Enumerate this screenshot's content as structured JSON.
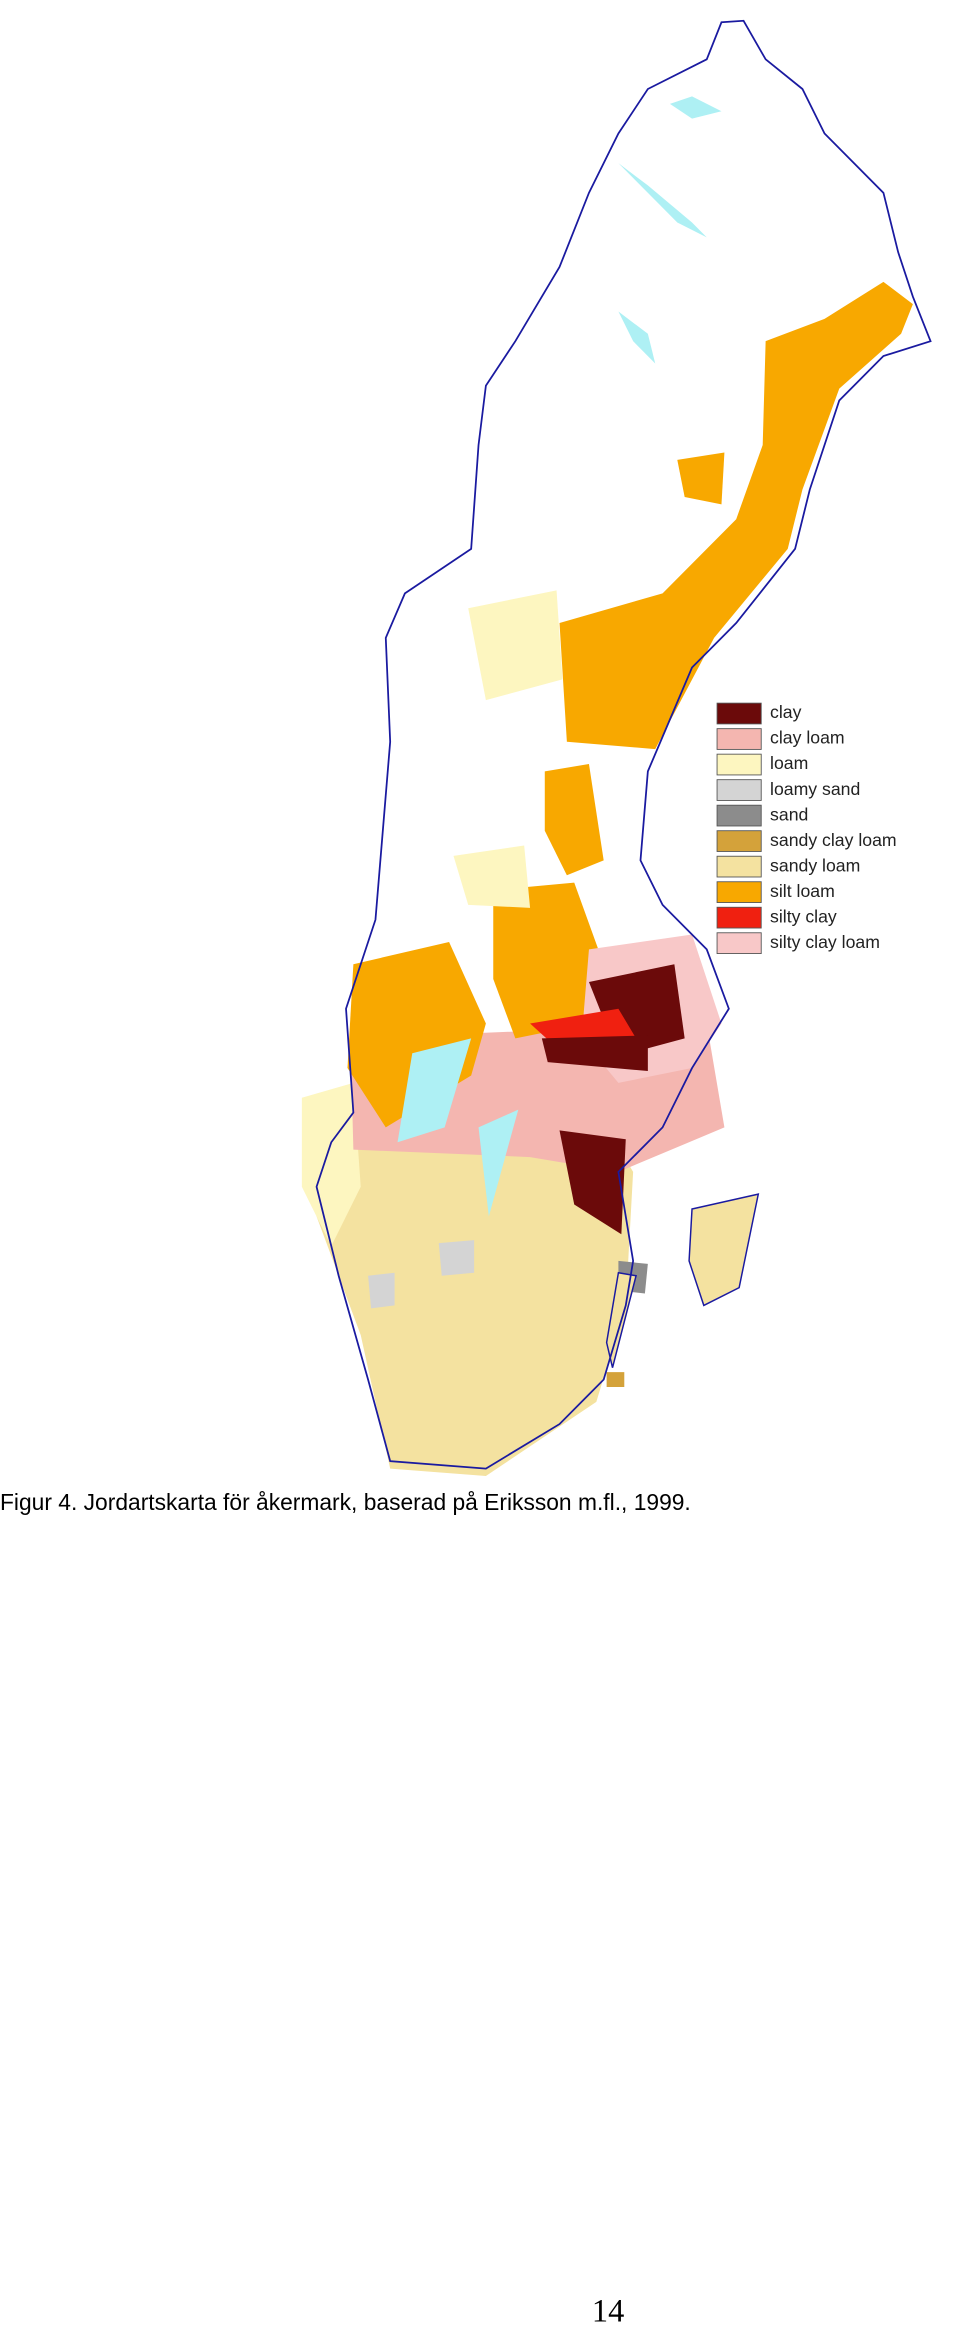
{
  "figure": {
    "legend": [
      {
        "label": "clay",
        "color": "#6b0a0a"
      },
      {
        "label": "clay loam",
        "color": "#f4b6b0"
      },
      {
        "label": "loam",
        "color": "#fdf6c0"
      },
      {
        "label": "loamy sand",
        "color": "#d4d4d4"
      },
      {
        "label": "sand",
        "color": "#8c8c8c"
      },
      {
        "label": "sandy clay loam",
        "color": "#d4a23a"
      },
      {
        "label": "sandy loam",
        "color": "#f4e2a0"
      },
      {
        "label": "silt loam",
        "color": "#f8a800"
      },
      {
        "label": "silty clay",
        "color": "#f02010"
      },
      {
        "label": "silty clay loam",
        "color": "#f8c8c8"
      }
    ],
    "caption": "Figur 4. Jordartskarta för åkermark, baserad på Eriksson m.fl., 1999."
  },
  "footer": {
    "page_number": "14"
  }
}
